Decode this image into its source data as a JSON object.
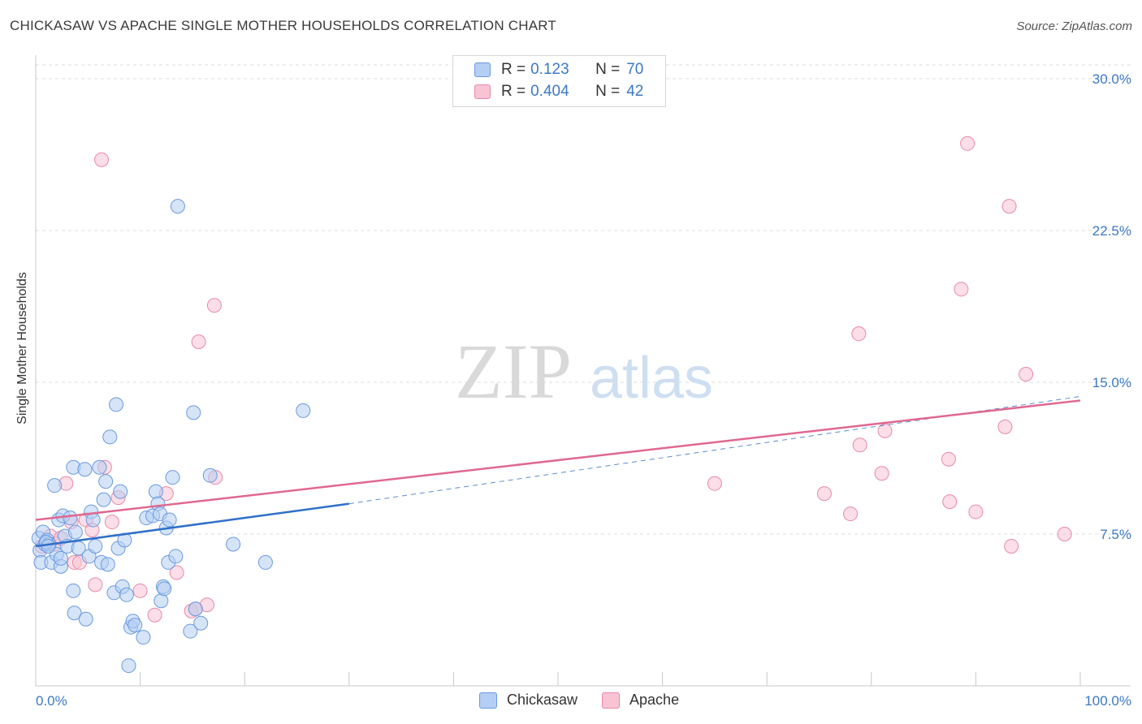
{
  "title": "CHICKASAW VS APACHE SINGLE MOTHER HOUSEHOLDS CORRELATION CHART",
  "source": "Source: ZipAtlas.com",
  "watermark": {
    "zip": "ZIP",
    "atlas": "atlas"
  },
  "legend_top": [
    {
      "r_label": "R =",
      "r_value": "0.123",
      "n_label": "N =",
      "n_value": "70"
    },
    {
      "r_label": "R =",
      "r_value": "0.404",
      "n_label": "N =",
      "n_value": "42"
    }
  ],
  "legend_bottom": [
    "Chickasaw",
    "Apache"
  ],
  "colors": {
    "chickasaw_fill": "#b5cef3",
    "chickasaw_stroke": "#6a9ae0",
    "chickasaw_line": "#3070c8",
    "apache_fill": "#f8c3d3",
    "apache_stroke": "#e98aa8",
    "apache_line": "#e06890",
    "tick_label": "#3c78c8",
    "grid": "#dddddd"
  },
  "chart_data": {
    "type": "scatter",
    "xlabel": "",
    "ylabel": "Single Mother Households",
    "xlim": [
      0,
      100
    ],
    "ylim": [
      0,
      30
    ],
    "x_tick_labels": [
      "0.0%",
      "100.0%"
    ],
    "y_ticks": [
      7.5,
      15.0,
      22.5,
      30.0
    ],
    "y_tick_labels": [
      "7.5%",
      "15.0%",
      "22.5%",
      "30.0%"
    ],
    "grid": true,
    "legend_position": "top-center",
    "series": [
      {
        "name": "Chickasaw",
        "r": 0.123,
        "n": 70,
        "trend": {
          "x0": 0,
          "y0": 6.9,
          "x1": 30,
          "y1": 9.0,
          "dashed_extension_to": {
            "x": 100,
            "y": 14.3
          }
        },
        "points": [
          [
            0.3,
            7.3
          ],
          [
            0.4,
            6.7
          ],
          [
            0.5,
            6.1
          ],
          [
            0.7,
            7.6
          ],
          [
            0.9,
            7.0
          ],
          [
            1.1,
            7.2
          ],
          [
            1.3,
            7.0
          ],
          [
            1.5,
            6.1
          ],
          [
            1.8,
            9.9
          ],
          [
            2.0,
            6.5
          ],
          [
            2.2,
            8.2
          ],
          [
            2.4,
            5.9
          ],
          [
            2.6,
            8.4
          ],
          [
            2.8,
            7.4
          ],
          [
            3.0,
            6.9
          ],
          [
            3.3,
            8.3
          ],
          [
            3.6,
            10.8
          ],
          [
            3.8,
            7.6
          ],
          [
            4.1,
            6.8
          ],
          [
            4.7,
            10.7
          ],
          [
            5.1,
            6.4
          ],
          [
            5.3,
            8.6
          ],
          [
            5.5,
            8.2
          ],
          [
            5.7,
            6.9
          ],
          [
            6.1,
            10.8
          ],
          [
            6.3,
            6.1
          ],
          [
            6.5,
            9.2
          ],
          [
            6.7,
            10.1
          ],
          [
            6.9,
            6.0
          ],
          [
            7.1,
            12.3
          ],
          [
            7.5,
            4.6
          ],
          [
            7.7,
            13.9
          ],
          [
            7.9,
            6.8
          ],
          [
            8.1,
            9.6
          ],
          [
            8.3,
            4.9
          ],
          [
            8.5,
            7.2
          ],
          [
            8.7,
            4.5
          ],
          [
            8.9,
            1.0
          ],
          [
            9.1,
            2.9
          ],
          [
            9.3,
            3.2
          ],
          [
            9.5,
            3.0
          ],
          [
            10.3,
            2.4
          ],
          [
            10.6,
            8.3
          ],
          [
            11.2,
            8.4
          ],
          [
            11.5,
            9.6
          ],
          [
            11.7,
            9.0
          ],
          [
            11.9,
            8.5
          ],
          [
            12.0,
            4.2
          ],
          [
            12.2,
            4.9
          ],
          [
            12.3,
            4.8
          ],
          [
            12.5,
            7.8
          ],
          [
            12.7,
            6.1
          ],
          [
            12.8,
            8.2
          ],
          [
            13.1,
            10.3
          ],
          [
            13.4,
            6.4
          ],
          [
            13.6,
            23.7
          ],
          [
            14.8,
            2.7
          ],
          [
            15.1,
            13.5
          ],
          [
            15.3,
            3.8
          ],
          [
            15.8,
            3.1
          ],
          [
            16.7,
            10.4
          ],
          [
            18.9,
            7.0
          ],
          [
            22.0,
            6.1
          ],
          [
            25.6,
            13.6
          ],
          [
            3.6,
            4.7
          ],
          [
            3.7,
            3.6
          ],
          [
            4.8,
            3.3
          ],
          [
            2.4,
            6.3
          ],
          [
            1.0,
            7.1
          ],
          [
            1.2,
            6.9
          ]
        ]
      },
      {
        "name": "Apache",
        "r": 0.404,
        "n": 42,
        "trend": {
          "x0": 0,
          "y0": 8.2,
          "x1": 100,
          "y1": 14.1
        },
        "points": [
          [
            0.6,
            6.9
          ],
          [
            1.4,
            7.4
          ],
          [
            1.9,
            7.0
          ],
          [
            2.4,
            7.3
          ],
          [
            2.9,
            10.0
          ],
          [
            3.4,
            8.1
          ],
          [
            3.7,
            6.1
          ],
          [
            4.2,
            6.1
          ],
          [
            4.8,
            8.2
          ],
          [
            5.4,
            7.7
          ],
          [
            5.7,
            5.0
          ],
          [
            6.3,
            26.0
          ],
          [
            6.6,
            10.8
          ],
          [
            7.3,
            8.1
          ],
          [
            7.9,
            9.3
          ],
          [
            10.0,
            4.7
          ],
          [
            11.4,
            3.5
          ],
          [
            12.5,
            9.5
          ],
          [
            13.5,
            5.6
          ],
          [
            14.9,
            3.7
          ],
          [
            15.3,
            3.8
          ],
          [
            15.6,
            17.0
          ],
          [
            16.4,
            4.0
          ],
          [
            17.1,
            18.8
          ],
          [
            17.2,
            10.3
          ],
          [
            65.0,
            10.0
          ],
          [
            75.5,
            9.5
          ],
          [
            78.0,
            8.5
          ],
          [
            78.8,
            17.4
          ],
          [
            78.9,
            11.9
          ],
          [
            81.0,
            10.5
          ],
          [
            81.3,
            12.6
          ],
          [
            87.4,
            11.2
          ],
          [
            87.5,
            9.1
          ],
          [
            88.6,
            19.6
          ],
          [
            89.2,
            26.8
          ],
          [
            90.0,
            8.6
          ],
          [
            92.8,
            12.8
          ],
          [
            93.2,
            23.7
          ],
          [
            93.4,
            6.9
          ],
          [
            94.8,
            15.4
          ],
          [
            98.5,
            7.5
          ]
        ]
      }
    ]
  }
}
